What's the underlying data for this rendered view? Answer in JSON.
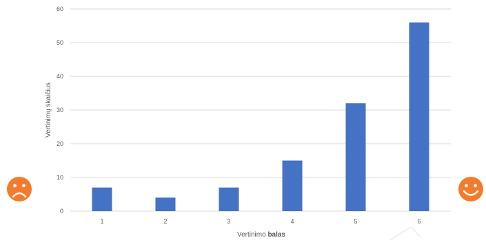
{
  "chart_data": {
    "type": "bar",
    "categories": [
      "1",
      "2",
      "3",
      "4",
      "5",
      "6"
    ],
    "values": [
      7,
      4,
      7,
      15,
      32,
      56
    ],
    "xlabel_prefix": "Vertinimo ",
    "xlabel_bold": "balas",
    "ylabel": "Vertinimų skaičius",
    "ylim": [
      0,
      60
    ],
    "yticks": [
      0,
      10,
      20,
      30,
      40,
      50,
      60
    ],
    "grid": true,
    "bar_color": "#4472c4",
    "grid_color": "#d9d9d9"
  },
  "decorations": {
    "left_icon": "sad-face-icon",
    "right_icon": "happy-face-icon",
    "icon_color": "#f37b2b"
  }
}
